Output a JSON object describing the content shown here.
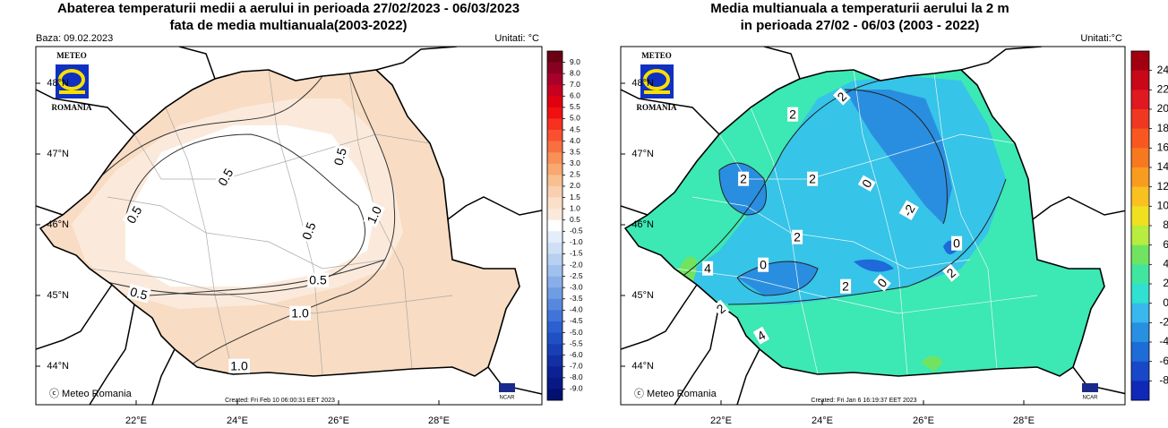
{
  "panels": [
    {
      "title_lines": [
        "Abaterea temperaturii medii a aerului in perioada 27/02/2023 - 06/03/2023",
        "fata de media multianuala(2003-2022)"
      ],
      "base": "Baza: 09.02.2023",
      "units": "Unitati: °C",
      "logo": {
        "top": "METEO",
        "bottom": "ROMANIA"
      },
      "colorbar": {
        "labels": [
          "9.0",
          "8.0",
          "7.0",
          "6.0",
          "5.5",
          "5.0",
          "4.5",
          "4.0",
          "3.5",
          "3.0",
          "2.5",
          "2.0",
          "1.5",
          "1.0",
          "0.5",
          "-0.5",
          "-1.0",
          "-1.5",
          "-2.0",
          "-2.5",
          "-3.0",
          "-3.5",
          "-4.0",
          "-4.5",
          "-5.0",
          "-5.5",
          "-6.0",
          "-7.0",
          "-8.0",
          "-9.0"
        ],
        "colors": [
          "#6b0012",
          "#8a0020",
          "#a8002a",
          "#c80020",
          "#e00010",
          "#f01010",
          "#f83020",
          "#f85030",
          "#f87040",
          "#f89058",
          "#f8a870",
          "#f8c090",
          "#f8d0b0",
          "#fae0c8",
          "#fbeadb",
          "#ffffff",
          "#e4eefa",
          "#cfe0f6",
          "#b8d0f2",
          "#a0c0ee",
          "#88aeea",
          "#709ce4",
          "#5888de",
          "#4074d8",
          "#2c60d0",
          "#2050c4",
          "#1840b4",
          "#1230a4",
          "#0c2294",
          "#081884",
          "#041070"
        ]
      },
      "lat_labels": [
        "48°N",
        "47°N",
        "46°N",
        "45°N",
        "44°N"
      ],
      "lon_labels": [
        "22°E",
        "24°E",
        "26°E",
        "28°E"
      ],
      "contour_labels": [
        "0.5",
        "0.5",
        "0.5",
        "1.0",
        "0.5",
        "0.5",
        "0.5",
        "1.0",
        "1.0"
      ],
      "copyright": "ⓒ Meteo Romania",
      "created": "Created: Fri Feb 10 06:00:31 EET 2023",
      "ncar": "NCAR"
    },
    {
      "title_lines": [
        "Media multianuala a temperaturii aerului la 2 m",
        "in perioada 27/02 - 06/03 (2003 - 2022)"
      ],
      "units": "Unitati:°C",
      "logo": {
        "top": "METEO",
        "bottom": "ROMANIA"
      },
      "colorbar": {
        "labels": [
          "24",
          "22",
          "20",
          "18",
          "16",
          "14",
          "12",
          "10",
          "8",
          "6",
          "4",
          "2",
          "0",
          "-2",
          "-4",
          "-6",
          "-8"
        ],
        "colors": [
          "#a00010",
          "#c80818",
          "#e01820",
          "#f03820",
          "#f85820",
          "#f87820",
          "#f89c20",
          "#f8c020",
          "#f0e020",
          "#b8ec40",
          "#70e460",
          "#40e6a0",
          "#30e0d0",
          "#38b8ec",
          "#2890e0",
          "#1e6cd8",
          "#1848c8",
          "#1028b8"
        ]
      },
      "lat_labels": [
        "48°N",
        "47°N",
        "46°N",
        "45°N",
        "44°N"
      ],
      "lon_labels": [
        "22°E",
        "24°E",
        "26°E",
        "28°E"
      ],
      "contour_labels": [
        "2",
        "2",
        "2",
        "2",
        "0",
        "-2",
        "2",
        "0",
        "0",
        "4",
        "2",
        "0",
        "2",
        "2",
        "4"
      ],
      "copyright": "ⓒ Meteo Romania",
      "created": "Created: Fri Jan  6 16:19:37 EET 2023",
      "ncar": "NCAR"
    }
  ]
}
